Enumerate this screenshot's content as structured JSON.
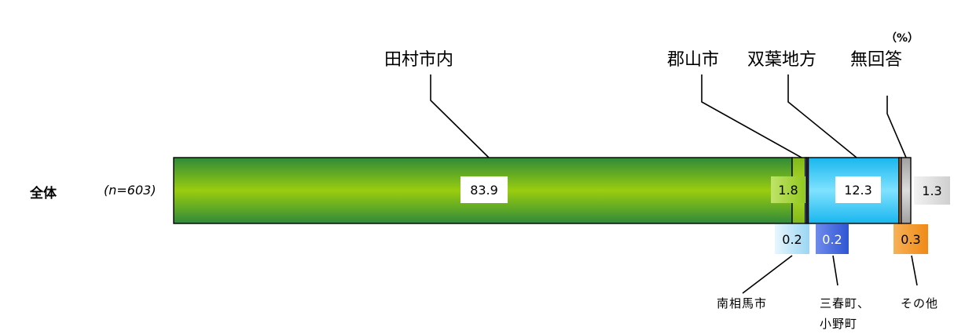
{
  "unit_label": "（%）",
  "chart_data": {
    "type": "bar",
    "orientation": "horizontal-stacked-100",
    "row_label": "全体",
    "n_label": "(n=603)",
    "segments": [
      {
        "name": "田村市内",
        "value": 83.9,
        "color": "#3f9c35",
        "label_text": "83.9"
      },
      {
        "name": "郡山市",
        "value": 1.8,
        "color": "#9ccc1c",
        "label_text": "1.8"
      },
      {
        "name": "南相馬市",
        "value": 0.2,
        "color": "#a9ddf5",
        "label_text": "0.2"
      },
      {
        "name": "三春町、小野町",
        "value": 0.2,
        "color": "#3f63d6",
        "label_text": "0.2"
      },
      {
        "name": "双葉地方",
        "value": 12.3,
        "color": "#22c2f2",
        "label_text": "12.3"
      },
      {
        "name": "その他",
        "value": 0.3,
        "color": "#ef8c1b",
        "label_text": "0.3"
      },
      {
        "name": "無回答",
        "value": 1.3,
        "color": "#bcbcbc",
        "label_text": "1.3"
      }
    ],
    "category_labels_top": [
      "田村市内",
      "郡山市",
      "双葉地方",
      "無回答"
    ],
    "category_labels_bottom": [
      "南相馬市",
      "三春町、",
      "小野町",
      "その他"
    ]
  }
}
